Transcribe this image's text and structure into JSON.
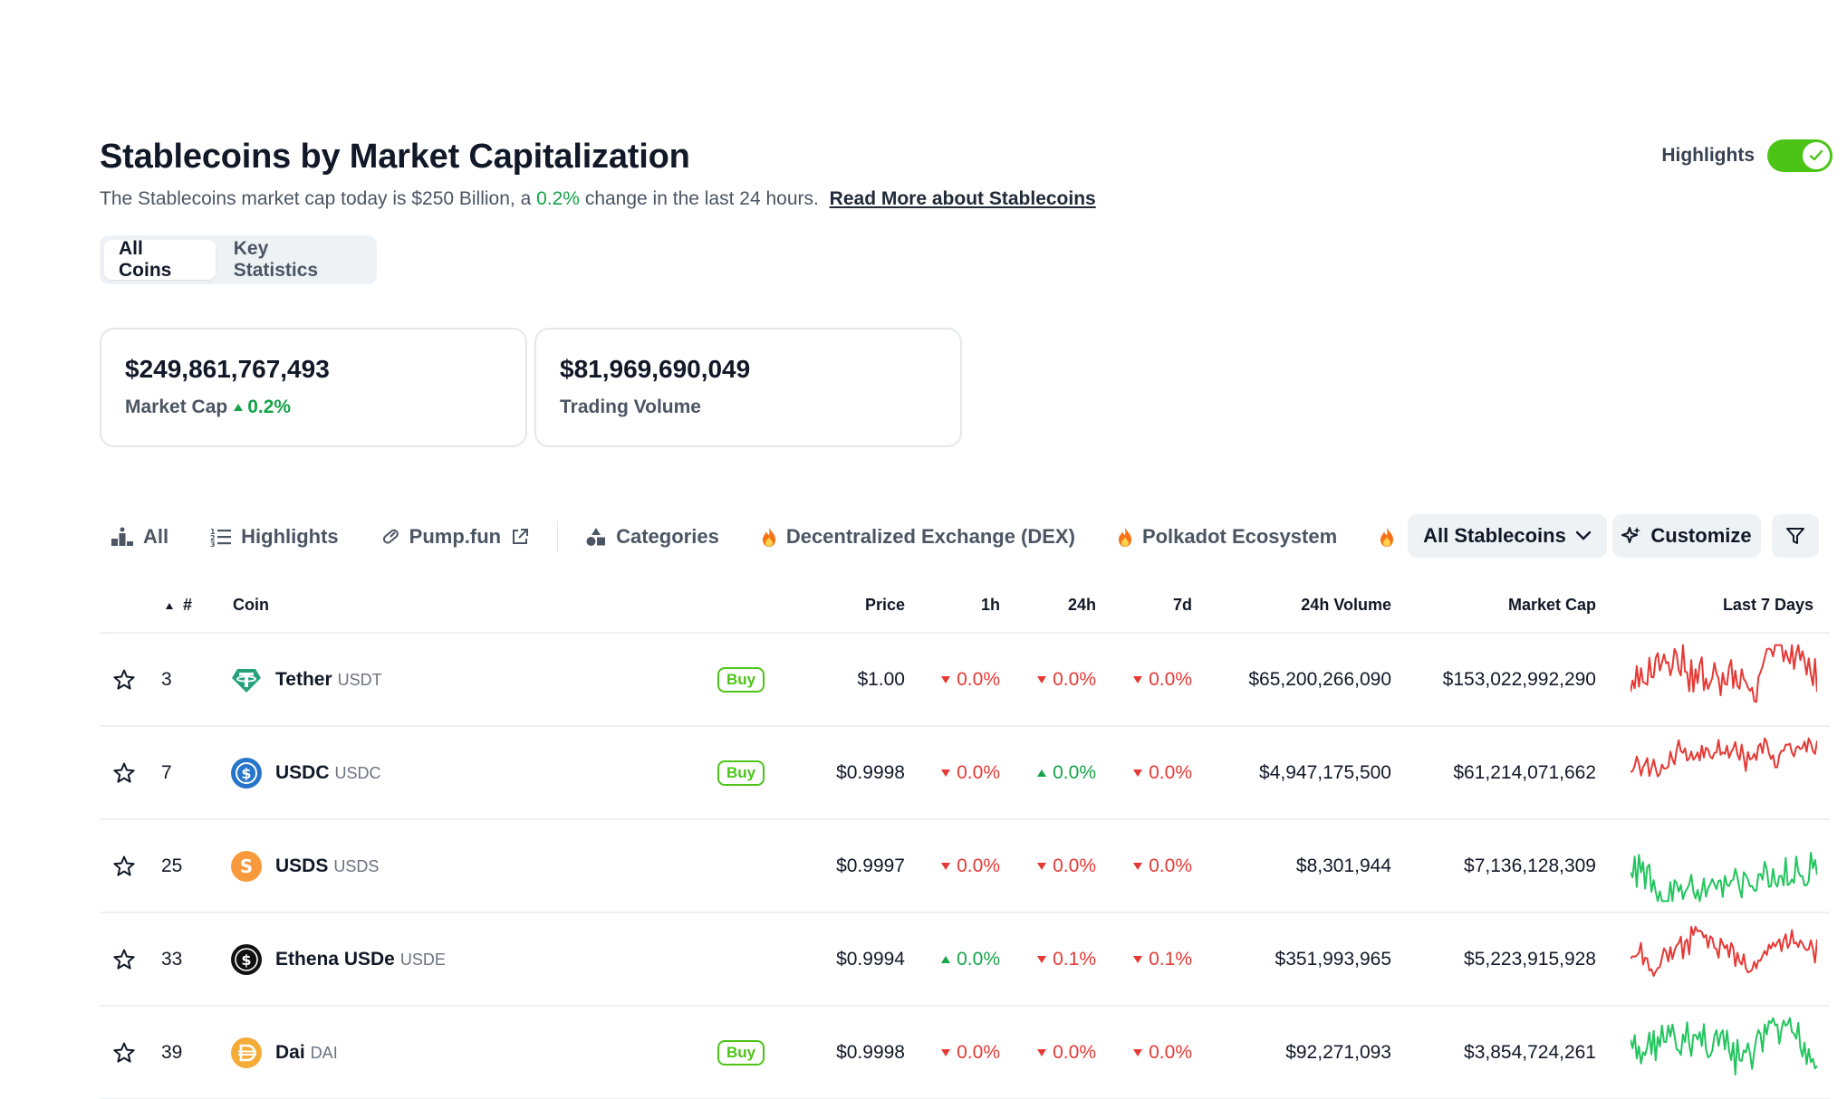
{
  "header": {
    "title": "Stablecoins by Market Capitalization",
    "subtitle_prefix": "The Stablecoins market cap today is $250 Billion, a ",
    "subtitle_change": "0.2%",
    "subtitle_suffix": " change in the last 24 hours.",
    "read_more": "Read More about Stablecoins",
    "highlights_label": "Highlights",
    "highlights_on": true
  },
  "tabs": [
    {
      "label": "All Coins",
      "active": true
    },
    {
      "label": "Key Statistics",
      "active": false
    }
  ],
  "stats": {
    "market_cap_value": "$249,861,767,493",
    "market_cap_label": "Market Cap",
    "market_cap_change": "0.2%",
    "volume_value": "$81,969,690,049",
    "volume_label": "Trading Volume"
  },
  "filters": {
    "all": "All",
    "highlights": "Highlights",
    "pump": "Pump.fun",
    "categories": "Categories",
    "dex": "Decentralized Exchange (DEX)",
    "polkadot": "Polkadot Ecosystem",
    "stablecoins": "All Stablecoins",
    "customize": "Customize"
  },
  "columns": {
    "rank": "#",
    "coin": "Coin",
    "price": "Price",
    "h1": "1h",
    "h24": "24h",
    "d7": "7d",
    "volume": "24h Volume",
    "mcap": "Market Cap",
    "last7": "Last 7 Days"
  },
  "buy_label": "Buy",
  "rows": [
    {
      "rank": "3",
      "name": "Tether",
      "symbol": "USDT",
      "buy": true,
      "price": "$1.00",
      "h1": "0.0%",
      "h1_dir": "down",
      "h24": "0.0%",
      "h24_dir": "down",
      "d7": "0.0%",
      "d7_dir": "down",
      "volume": "$65,200,266,090",
      "mcap": "$153,022,992,290",
      "icon": "tether-icon",
      "icon_color": "#26a17b",
      "spark_color": "#e53935"
    },
    {
      "rank": "7",
      "name": "USDC",
      "symbol": "USDC",
      "buy": true,
      "price": "$0.9998",
      "h1": "0.0%",
      "h1_dir": "down",
      "h24": "0.0%",
      "h24_dir": "up",
      "d7": "0.0%",
      "d7_dir": "down",
      "volume": "$4,947,175,500",
      "mcap": "$61,214,071,662",
      "icon": "usdc-icon",
      "icon_color": "#2775ca",
      "spark_color": "#e53935"
    },
    {
      "rank": "25",
      "name": "USDS",
      "symbol": "USDS",
      "buy": false,
      "price": "$0.9997",
      "h1": "0.0%",
      "h1_dir": "down",
      "h24": "0.0%",
      "h24_dir": "down",
      "d7": "0.0%",
      "d7_dir": "down",
      "volume": "$8,301,944",
      "mcap": "$7,136,128,309",
      "icon": "usds-icon",
      "icon_color": "#f89a3c",
      "spark_color": "#22c55e"
    },
    {
      "rank": "33",
      "name": "Ethena USDe",
      "symbol": "USDE",
      "buy": false,
      "price": "$0.9994",
      "h1": "0.0%",
      "h1_dir": "up",
      "h24": "0.1%",
      "h24_dir": "down",
      "d7": "0.1%",
      "d7_dir": "down",
      "volume": "$351,993,965",
      "mcap": "$5,223,915,928",
      "icon": "ethena-icon",
      "icon_color": "#111111",
      "spark_color": "#e53935"
    },
    {
      "rank": "39",
      "name": "Dai",
      "symbol": "DAI",
      "buy": true,
      "price": "$0.9998",
      "h1": "0.0%",
      "h1_dir": "down",
      "h24": "0.0%",
      "h24_dir": "down",
      "d7": "0.0%",
      "d7_dir": "down",
      "volume": "$92,271,093",
      "mcap": "$3,854,724,261",
      "icon": "dai-icon",
      "icon_color": "#f5ac37",
      "spark_color": "#22c55e"
    }
  ]
}
